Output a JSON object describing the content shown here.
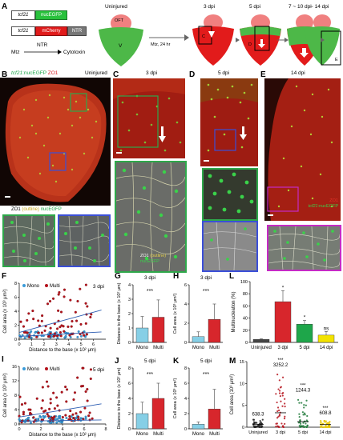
{
  "panelA": {
    "letter": "A",
    "construct1_promoter": "tcf21",
    "construct1_gene": "nucEGFP",
    "construct2_promoter": "tcf21",
    "construct2_gene": "mCherry",
    "construct2_tag": "NTR",
    "mtz": "Mtz",
    "ntr": "NTR",
    "cytotoxin": "Cytotoxin",
    "uninjured": "Uninjured",
    "oft": "OFT",
    "v": "V",
    "treatment": "Mtz, 24 hr",
    "stages": [
      "3 dpi",
      "5 dpi",
      "7 ~ 10 dpi",
      "~ 14 dpi"
    ],
    "boxes": [
      "C",
      "D",
      "E"
    ]
  },
  "panelB": {
    "letter": "B",
    "title_line": [
      "tcf21",
      ":nucEGFP ",
      "ZO1"
    ],
    "condition": "Uninjured",
    "inset_label": [
      "ZO1 ",
      "(outline) ",
      "nucEGFP"
    ]
  },
  "panelC": {
    "letter": "C",
    "condition": "3 dpi",
    "legend": [
      "ZO1 ",
      "(outline)",
      "nucEGFP"
    ]
  },
  "panelD": {
    "letter": "D",
    "condition": "5 dpi"
  },
  "panelE": {
    "letter": "E",
    "condition": "14 dpi",
    "legend": [
      "ZO1",
      "tcf21",
      ":nucEGFP"
    ]
  },
  "panelF": {
    "letter": "F",
    "chart_data": {
      "type": "scatter",
      "title": "3 dpi",
      "xlabel": "Distance to the base (x 10² μm)",
      "ylabel": "Cell area (x 10³ μm²)",
      "xlim": [
        0,
        7
      ],
      "ylim": [
        0,
        8
      ],
      "xticks": [
        "0",
        "1",
        "2",
        "3",
        "4",
        "5",
        "6"
      ],
      "yticks": [
        "0",
        "2",
        "4",
        "6",
        "8"
      ],
      "series": [
        {
          "name": "Mono",
          "color": "#3a9bd9"
        },
        {
          "name": "Multi",
          "color": "#b5121b"
        }
      ]
    }
  },
  "panelG": {
    "letter": "G",
    "chart_data": {
      "type": "bar",
      "title": "3 dpi",
      "categories": [
        "Mono",
        "Multi"
      ],
      "values": [
        1.0,
        1.75
      ],
      "errors": [
        0.8,
        1.2
      ],
      "ylabel": "Distance to the base (x 10² μm)",
      "ylim": [
        0,
        4
      ],
      "yticks": [
        "0",
        "1",
        "2",
        "3",
        "4"
      ],
      "sig": "***",
      "colors": [
        "#86cfe6",
        "#d7262c"
      ]
    }
  },
  "panelH": {
    "letter": "H",
    "chart_data": {
      "type": "bar",
      "title": "3 dpi",
      "categories": [
        "Mono",
        "Multi"
      ],
      "values": [
        0.6,
        2.4
      ],
      "errors": [
        0.5,
        1.6
      ],
      "ylabel": "Cell area (x 10³ μm²)",
      "ylim": [
        0,
        6
      ],
      "yticks": [
        "0",
        "2",
        "4",
        "6"
      ],
      "sig": "***",
      "colors": [
        "#86cfe6",
        "#d7262c"
      ]
    }
  },
  "panelI": {
    "letter": "I",
    "chart_data": {
      "type": "scatter",
      "title": "5 dpi",
      "xlabel": "Distance to the base (x 10² μm)",
      "ylabel": "Cell area (x 10³ μm²)",
      "xlim": [
        0,
        8
      ],
      "ylim": [
        0,
        16
      ],
      "xticks": [
        "0",
        "2",
        "4",
        "6",
        "8"
      ],
      "yticks": [
        "0",
        "4",
        "8",
        "12",
        "16"
      ],
      "series": [
        {
          "name": "Mono",
          "color": "#3a9bd9"
        },
        {
          "name": "Multi",
          "color": "#b5121b"
        }
      ]
    }
  },
  "panelJ": {
    "letter": "J",
    "chart_data": {
      "type": "bar",
      "title": "5 dpi",
      "categories": [
        "Mono",
        "Multi"
      ],
      "values": [
        2.0,
        4.0
      ],
      "errors": [
        1.5,
        2.0
      ],
      "ylabel": "Distance to the base (x 10² μm)",
      "ylim": [
        0,
        8
      ],
      "yticks": [
        "0",
        "2",
        "4",
        "6",
        "8"
      ],
      "sig": "***",
      "colors": [
        "#86cfe6",
        "#d7262c"
      ]
    }
  },
  "panelK": {
    "letter": "K",
    "chart_data": {
      "type": "bar",
      "title": "5 dpi",
      "categories": [
        "Mono",
        "Multi"
      ],
      "values": [
        0.6,
        2.6
      ],
      "errors": [
        0.3,
        2.6
      ],
      "ylabel": "Cell area (x 10³ μm²)",
      "ylim": [
        0,
        8
      ],
      "yticks": [
        "0",
        "2",
        "4",
        "6",
        "8"
      ],
      "sig": "***",
      "colors": [
        "#86cfe6",
        "#d7262c"
      ]
    }
  },
  "panelL": {
    "letter": "L",
    "chart_data": {
      "type": "bar",
      "categories": [
        "Uninjured",
        "3 dpi",
        "5 dpi",
        "14 dpi"
      ],
      "values": [
        5,
        67,
        30,
        12
      ],
      "errors": [
        1,
        18,
        6,
        6
      ],
      "sig": [
        "",
        "*",
        "*",
        "ns"
      ],
      "ylabel": "Multinucleation (%)",
      "ylim": [
        0,
        100
      ],
      "yticks": [
        "0",
        "20",
        "40",
        "60",
        "80",
        "100"
      ],
      "colors": [
        "#444444",
        "#d7262c",
        "#1ea64a",
        "#f2e200"
      ]
    }
  },
  "panelM": {
    "letter": "M",
    "chart_data": {
      "type": "scatter",
      "categories": [
        "Uninjured",
        "3 dpi",
        "5 dpi",
        "14 dpi"
      ],
      "medians_label": [
        "638.3",
        "3252.2",
        "1244.3",
        "608.8"
      ],
      "sig": [
        "",
        "***",
        "***",
        "***"
      ],
      "ylabel": "Cell area (10³ μm²)",
      "ylim": [
        0,
        15
      ],
      "yticks": [
        "0",
        "5",
        "10",
        "15"
      ],
      "colors": [
        "#222222",
        "#b5121b",
        "#1e7a3a",
        "#e8c600"
      ]
    }
  }
}
